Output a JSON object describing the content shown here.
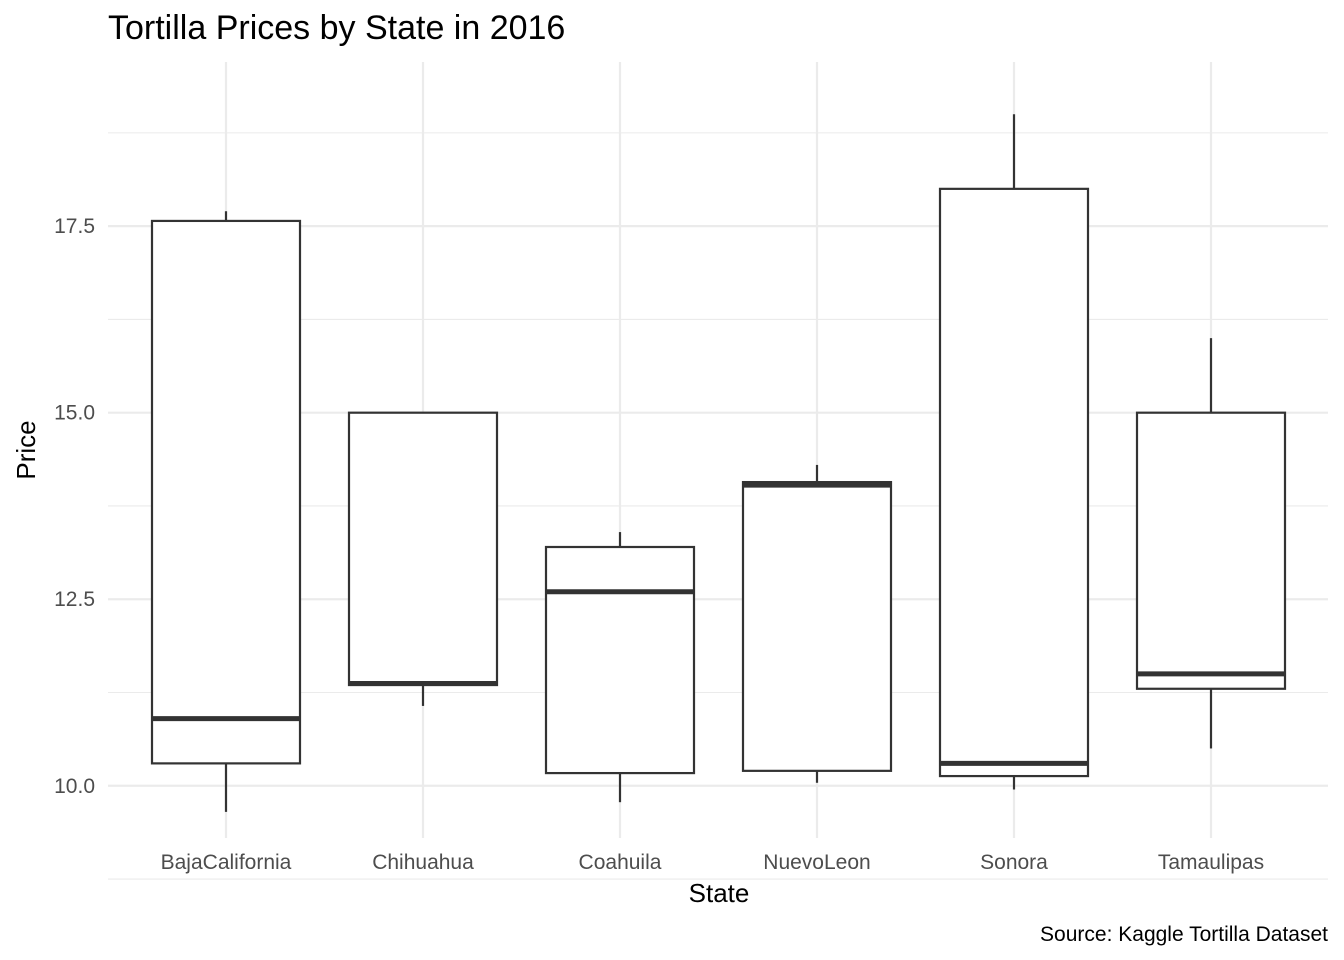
{
  "chart_data": {
    "type": "boxplot",
    "title": "Tortilla Prices by State in 2016",
    "xlabel": "State",
    "ylabel": "Price",
    "caption": "Source: Kaggle Tortilla Dataset",
    "categories": [
      "BajaCalifornia",
      "Chihuahua",
      "Coahuila",
      "NuevoLeon",
      "Sonora",
      "Tamaulipas"
    ],
    "boxes": [
      {
        "category": "BajaCalifornia",
        "whisker_low": 9.65,
        "q1": 10.3,
        "median": 10.9,
        "q3": 17.57,
        "whisker_high": 17.7
      },
      {
        "category": "Chihuahua",
        "whisker_low": 11.07,
        "q1": 11.35,
        "median": 11.37,
        "q3": 15.0,
        "whisker_high": 15.0
      },
      {
        "category": "Coahuila",
        "whisker_low": 9.78,
        "q1": 10.17,
        "median": 12.6,
        "q3": 13.2,
        "whisker_high": 13.4
      },
      {
        "category": "NuevoLeon",
        "whisker_low": 10.04,
        "q1": 10.2,
        "median": 14.03,
        "q3": 14.07,
        "whisker_high": 14.3
      },
      {
        "category": "Sonora",
        "whisker_low": 9.95,
        "q1": 10.13,
        "median": 10.3,
        "q3": 18.0,
        "whisker_high": 19.0
      },
      {
        "category": "Tamaulipas",
        "whisker_low": 10.5,
        "q1": 11.3,
        "median": 11.5,
        "q3": 15.0,
        "whisker_high": 16.0
      }
    ],
    "y_ticks": [
      10.0,
      12.5,
      15.0,
      17.5
    ],
    "y_tick_labels": [
      "10.0",
      "12.5",
      "15.0",
      "17.5"
    ],
    "ylim": [
      9.3,
      19.7
    ],
    "grid": true,
    "legend": "none"
  }
}
